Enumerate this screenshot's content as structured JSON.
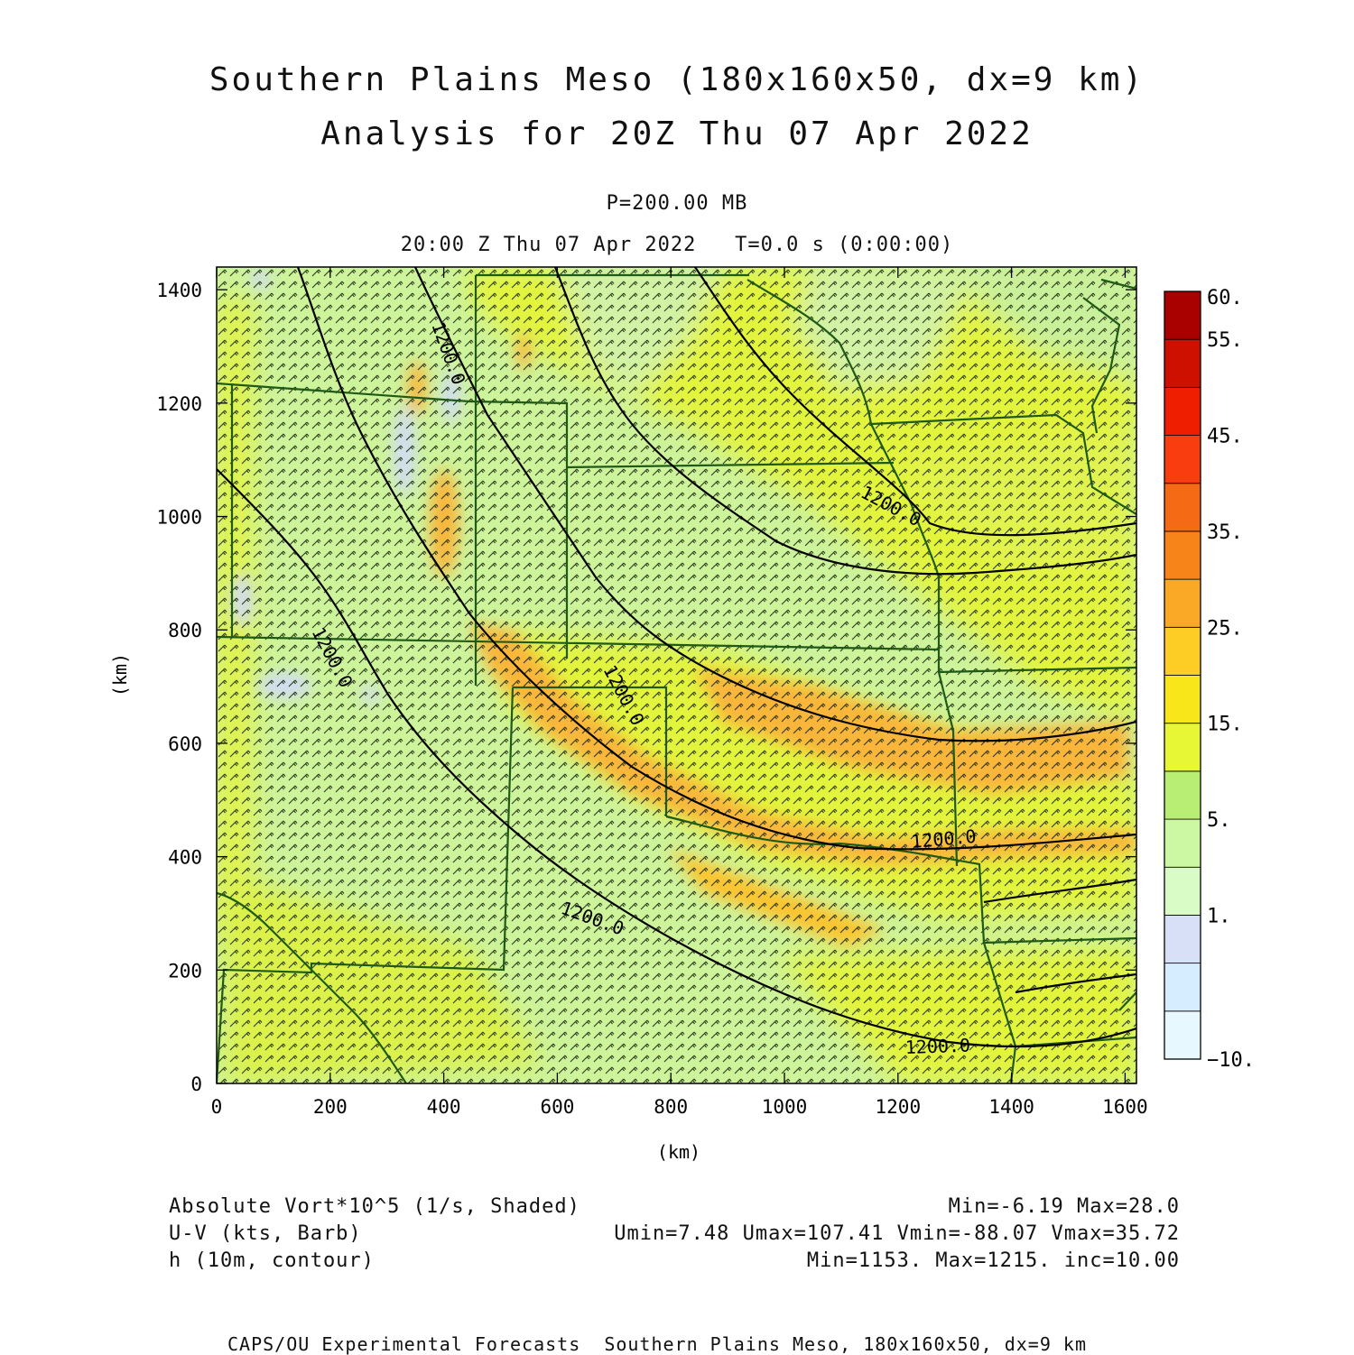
{
  "title": {
    "line1": "Southern Plains Meso (180x160x50, dx=9 km)",
    "line2": "Analysis for 20Z Thu 07 Apr 2022"
  },
  "subtitle": {
    "level": "P=200.00 MB",
    "time": "20:00 Z Thu 07 Apr 2022   T=0.0 s (0:00:00)"
  },
  "axes": {
    "xlabel": "(km)",
    "ylabel": "(km)",
    "xticks": [
      0,
      200,
      400,
      600,
      800,
      1000,
      1200,
      1400,
      1600
    ],
    "yticks": [
      0,
      200,
      400,
      600,
      800,
      1000,
      1200,
      1400
    ],
    "xrange": [
      0,
      1620
    ],
    "yrange": [
      0,
      1440
    ]
  },
  "colorbar": {
    "labels": [
      "60.",
      "55.",
      "45.",
      "35.",
      "25.",
      "15.",
      "5.",
      "1.",
      "−10."
    ],
    "colors": [
      "#e8f8ff",
      "#d6ecff",
      "#d8e0f8",
      "#d9fbc5",
      "#ccf8a3",
      "#b8ee73",
      "#e7f735",
      "#f8e61a",
      "#fdcc25",
      "#f9a925",
      "#f78419",
      "#f56a14",
      "#fa3d0e",
      "#f01e00",
      "#cd1000",
      "#a90000"
    ]
  },
  "contour_labels": [
    "1200.0",
    "1200.0",
    "1200.0",
    "1200.0",
    "1200.0",
    "1200.0",
    "1200.0"
  ],
  "info": {
    "left": [
      "Absolute Vort*10^5 (1/s, Shaded)",
      "U-V (kts, Barb)",
      "h (10m, contour)"
    ],
    "right": [
      "Min=-6.19 Max=28.0",
      "Umin=7.48 Umax=107.41 Vmin=-88.07 Vmax=35.72",
      "Min=1153. Max=1215. inc=10.00"
    ]
  },
  "footer": "CAPS/OU Experimental Forecasts  Southern Plains Meso, 180x160x50, dx=9 km",
  "chart_data": {
    "type": "heatmap",
    "field": "Absolute Vort*10^5 (1/s)",
    "vorticity_min": -6.19,
    "vorticity_max": 28.0,
    "wind_u_min": 7.48,
    "wind_u_max": 107.41,
    "wind_v_min": -88.07,
    "wind_v_max": 35.72,
    "height_min": 1153,
    "height_max": 1215,
    "height_inc": 10.0
  }
}
